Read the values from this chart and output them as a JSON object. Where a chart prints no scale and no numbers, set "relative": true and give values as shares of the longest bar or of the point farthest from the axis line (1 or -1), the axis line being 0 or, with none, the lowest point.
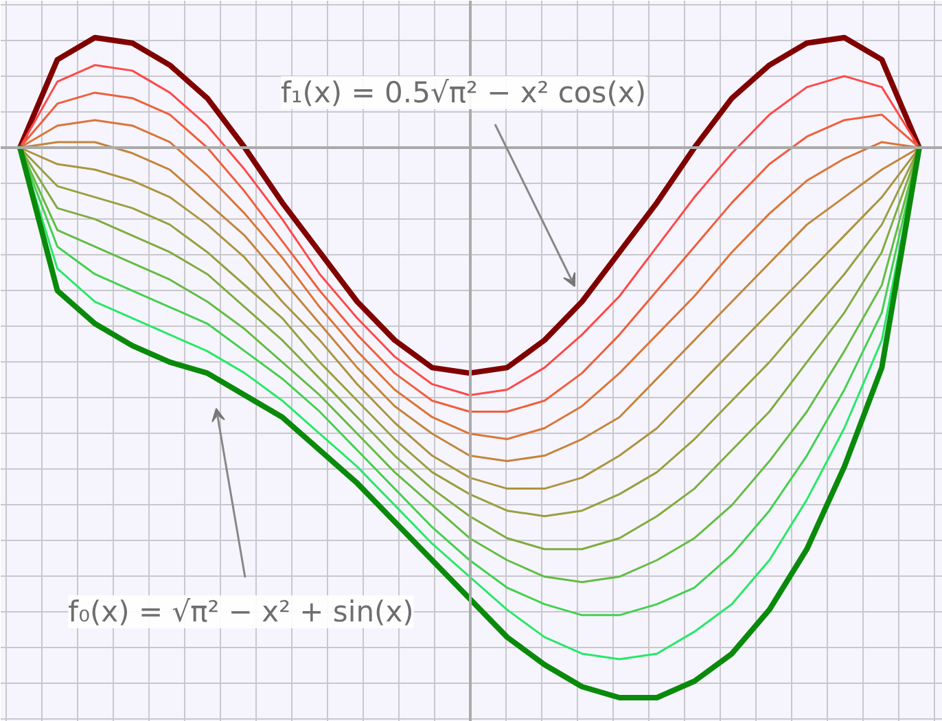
{
  "chart_data": {
    "type": "line",
    "relative": true,
    "grid": true,
    "line_style": "solid",
    "categories": [
      null,
      null,
      null,
      null,
      null,
      null,
      null,
      null,
      null,
      null,
      null,
      null,
      null,
      null,
      null,
      null,
      null,
      null,
      null,
      null,
      null,
      null,
      null,
      null,
      null
    ],
    "annotations": [
      "f₁(x) = 0.5√π² − x² cos(x)",
      "f₀(x) = √π² − x² + sin(x)"
    ],
    "series": [
      {
        "color": "#800000",
        "values": [
          0,
          0.16,
          0.2,
          0.19,
          0.15,
          0.09,
          0,
          -0.1,
          -0.19,
          -0.28,
          -0.35,
          -0.4,
          -0.41,
          -0.4,
          -0.35,
          -0.28,
          -0.19,
          -0.1,
          0,
          0.09,
          0.15,
          0.19,
          0.2,
          0.16,
          0
        ]
      },
      {
        "color": "#ff4848",
        "values": [
          0,
          0.12,
          0.15,
          0.14,
          0.1,
          0.04,
          -0.04,
          -0.13,
          -0.23,
          -0.31,
          -0.38,
          -0.43,
          -0.45,
          -0.44,
          -0.4,
          -0.34,
          -0.27,
          -0.18,
          -0.09,
          -0.01,
          0.06,
          0.11,
          0.13,
          0.11,
          0
        ]
      },
      {
        "color": "#f05e3c",
        "values": [
          0,
          0.08,
          0.1,
          0.09,
          0.06,
          0,
          -0.08,
          -0.17,
          -0.26,
          -0.34,
          -0.41,
          -0.46,
          -0.48,
          -0.48,
          -0.46,
          -0.41,
          -0.34,
          -0.26,
          -0.18,
          -0.1,
          -0.03,
          0.02,
          0.05,
          0.06,
          0
        ]
      },
      {
        "color": "#dc7438",
        "values": [
          0,
          0.04,
          0.05,
          0.04,
          0.01,
          -0.05,
          -0.12,
          -0.2,
          -0.29,
          -0.37,
          -0.44,
          -0.49,
          -0.52,
          -0.53,
          -0.51,
          -0.47,
          -0.41,
          -0.34,
          -0.27,
          -0.19,
          -0.12,
          -0.06,
          -0.02,
          0.01,
          0
        ]
      },
      {
        "color": "#c4843c",
        "values": [
          0,
          0.01,
          0.01,
          -0.01,
          -0.04,
          -0.1,
          -0.16,
          -0.24,
          -0.32,
          -0.4,
          -0.47,
          -0.52,
          -0.56,
          -0.57,
          -0.56,
          -0.53,
          -0.49,
          -0.42,
          -0.35,
          -0.28,
          -0.21,
          -0.14,
          -0.09,
          -0.04,
          0
        ]
      },
      {
        "color": "#ac9440",
        "values": [
          0,
          -0.03,
          -0.04,
          -0.06,
          -0.09,
          -0.14,
          -0.2,
          -0.28,
          -0.35,
          -0.43,
          -0.5,
          -0.56,
          -0.6,
          -0.62,
          -0.62,
          -0.6,
          -0.56,
          -0.51,
          -0.44,
          -0.37,
          -0.3,
          -0.23,
          -0.16,
          -0.09,
          0
        ]
      },
      {
        "color": "#98a040",
        "values": [
          0,
          -0.07,
          -0.09,
          -0.11,
          -0.14,
          -0.19,
          -0.25,
          -0.31,
          -0.39,
          -0.46,
          -0.53,
          -0.59,
          -0.63,
          -0.66,
          -0.67,
          -0.66,
          -0.63,
          -0.59,
          -0.53,
          -0.46,
          -0.39,
          -0.31,
          -0.23,
          -0.14,
          0
        ]
      },
      {
        "color": "#80ac40",
        "values": [
          0,
          -0.11,
          -0.13,
          -0.16,
          -0.19,
          -0.23,
          -0.29,
          -0.35,
          -0.42,
          -0.49,
          -0.56,
          -0.62,
          -0.67,
          -0.71,
          -0.73,
          -0.73,
          -0.71,
          -0.67,
          -0.62,
          -0.55,
          -0.48,
          -0.39,
          -0.3,
          -0.19,
          0
        ]
      },
      {
        "color": "#64bc44",
        "values": [
          0,
          -0.15,
          -0.18,
          -0.21,
          -0.24,
          -0.28,
          -0.33,
          -0.39,
          -0.45,
          -0.52,
          -0.59,
          -0.65,
          -0.71,
          -0.75,
          -0.78,
          -0.79,
          -0.78,
          -0.75,
          -0.71,
          -0.65,
          -0.57,
          -0.48,
          -0.37,
          -0.25,
          0
        ]
      },
      {
        "color": "#44d050",
        "values": [
          0,
          -0.18,
          -0.23,
          -0.26,
          -0.29,
          -0.32,
          -0.37,
          -0.42,
          -0.48,
          -0.55,
          -0.62,
          -0.69,
          -0.75,
          -0.8,
          -0.83,
          -0.85,
          -0.85,
          -0.83,
          -0.8,
          -0.74,
          -0.66,
          -0.56,
          -0.44,
          -0.3,
          0
        ]
      },
      {
        "color": "#28e868",
        "values": [
          0,
          -0.22,
          -0.28,
          -0.31,
          -0.34,
          -0.37,
          -0.41,
          -0.46,
          -0.52,
          -0.58,
          -0.65,
          -0.72,
          -0.78,
          -0.84,
          -0.89,
          -0.92,
          -0.93,
          -0.92,
          -0.88,
          -0.83,
          -0.75,
          -0.64,
          -0.51,
          -0.35,
          0
        ]
      },
      {
        "color": "#0a8a0a",
        "values": [
          0,
          -0.26,
          -0.32,
          -0.36,
          -0.39,
          -0.41,
          -0.45,
          -0.49,
          -0.55,
          -0.61,
          -0.68,
          -0.75,
          -0.82,
          -0.89,
          -0.94,
          -0.98,
          -1.0,
          -1.0,
          -0.97,
          -0.92,
          -0.84,
          -0.73,
          -0.58,
          -0.4,
          0
        ]
      }
    ]
  }
}
